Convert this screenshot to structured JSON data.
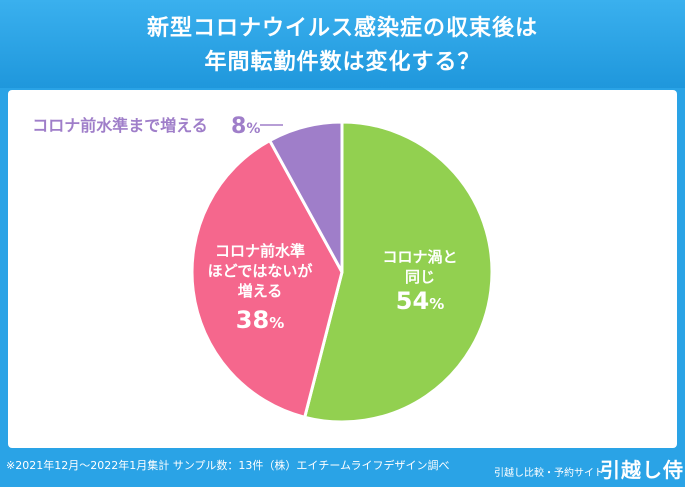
{
  "header": {
    "title_line1": "新型コロナウイルス感染症の収束後は",
    "title_line2": "年間転勤件数は変化する？"
  },
  "chart_data": {
    "type": "pie",
    "title": "新型コロナウイルス感染症の収束後は年間転勤件数は変化する？",
    "slices": [
      {
        "label_lines": [
          "コロナ渦と",
          "同じ"
        ],
        "value": 54,
        "color": "#92d050",
        "label_color": "#ffffff"
      },
      {
        "label_lines": [
          "コロナ前水準",
          "ほどではないが",
          "増える"
        ],
        "value": 38,
        "color": "#f5678d",
        "label_color": "#ffffff"
      },
      {
        "label_lines": [
          "コロナ前水準まで増える"
        ],
        "value": 8,
        "color": "#9f7ec9",
        "label_color": "#9f7ec9"
      }
    ],
    "percent_suffix": "%"
  },
  "footer": {
    "note": "※2021年12月〜2022年1月集計 サンプル数：13件（株）エイチームライフデザイン調べ",
    "subtitle": "引越し比較・予約サイト",
    "logo": "引越し侍"
  }
}
